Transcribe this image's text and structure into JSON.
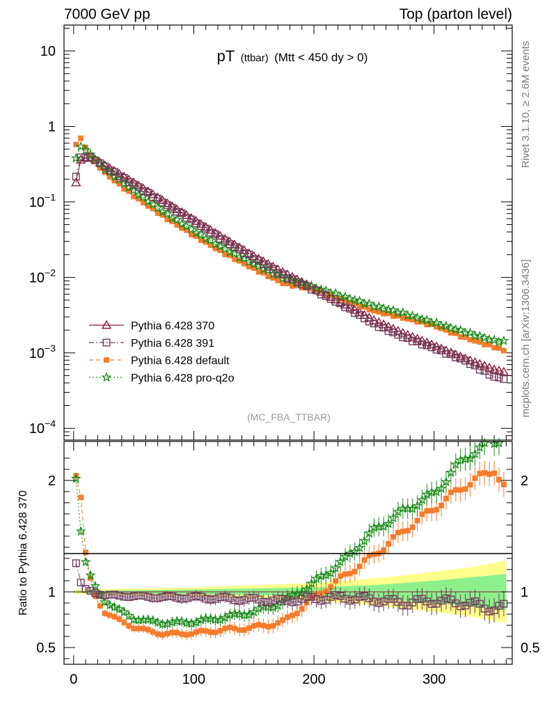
{
  "header": {
    "left": "7000 GeV pp",
    "right": "Top (parton level)"
  },
  "side_labels": {
    "rivet": "Rivet 3.1.10, ≥ 2.6M events",
    "mcplots": "mcplots.cern.ch [arXiv:1306.3436]"
  },
  "chart_data": {
    "type": "scatter",
    "title_main": "pT",
    "title_sub": "(ttbar)",
    "title_cond": "(Mtt < 450 dy > 0)",
    "watermark": "(MC_FBA_TTBAR)",
    "xlim": [
      -8,
      365
    ],
    "x_ticks": [
      0,
      100,
      200,
      300
    ],
    "top_panel": {
      "yscale": "log",
      "ylim": [
        7e-05,
        22
      ],
      "y_ticks": [
        {
          "value": 10,
          "base": "10",
          "exp": ""
        },
        {
          "value": 1,
          "base": "1",
          "exp": ""
        },
        {
          "value": 0.1,
          "base": "10",
          "exp": "−1"
        },
        {
          "value": 0.01,
          "base": "10",
          "exp": "−2"
        },
        {
          "value": 0.001,
          "base": "10",
          "exp": "−3"
        },
        {
          "value": 0.0001,
          "base": "10",
          "exp": "−4"
        }
      ]
    },
    "ratio_panel": {
      "ylabel": "Ratio to Pythia 6.428 370",
      "ylim": [
        0.35,
        2.35
      ],
      "y_ticks": [
        0.5,
        1,
        2
      ],
      "y_tick_labels": [
        "0.5",
        "1",
        "2"
      ],
      "band_anchors_x": [
        0,
        100,
        200,
        250,
        300,
        330,
        360
      ],
      "band_green_halfwidth": [
        0.01,
        0.02,
        0.04,
        0.06,
        0.1,
        0.13,
        0.16
      ],
      "band_yellow_halfwidth": [
        0.02,
        0.04,
        0.08,
        0.12,
        0.18,
        0.22,
        0.28
      ]
    },
    "series": [
      {
        "name": "Pythia 6.428 370",
        "color": "#8b1a3a",
        "marker": "triangle",
        "line": "solid",
        "anchors_x": [
          2,
          6,
          10,
          16,
          25,
          50,
          75,
          100,
          125,
          150,
          175,
          200,
          225,
          250,
          275,
          300,
          325,
          350,
          360
        ],
        "anchors_y": [
          0.18,
          0.36,
          0.38,
          0.38,
          0.31,
          0.18,
          0.102,
          0.058,
          0.033,
          0.019,
          0.0115,
          0.0072,
          0.0044,
          0.0027,
          0.0018,
          0.00125,
          0.00085,
          0.0006,
          0.00055
        ],
        "ratio_anchors_y": [
          1,
          1,
          1,
          1,
          1,
          1,
          1,
          1,
          1,
          1,
          1,
          1,
          1,
          1,
          1,
          1,
          1,
          1,
          1
        ]
      },
      {
        "name": "Pythia 6.428 391",
        "color": "#6e3a5a",
        "marker": "open-square",
        "line": "dash-dot",
        "anchors_x": [
          2,
          6,
          10,
          16,
          25,
          50,
          75,
          100,
          125,
          150,
          175,
          200,
          225,
          250,
          275,
          300,
          325,
          350,
          360
        ],
        "anchors_y": [
          0.22,
          0.38,
          0.4,
          0.38,
          0.3,
          0.17,
          0.097,
          0.055,
          0.031,
          0.018,
          0.0105,
          0.0068,
          0.0042,
          0.0024,
          0.0016,
          0.00115,
          0.0008,
          0.00048,
          0.00045
        ],
        "ratio_anchors_y": [
          1.26,
          1.08,
          1.02,
          1.0,
          0.97,
          0.96,
          0.95,
          0.95,
          0.94,
          0.93,
          0.92,
          0.94,
          0.95,
          0.93,
          0.9,
          0.92,
          0.9,
          0.85,
          0.86
        ]
      },
      {
        "name": "Pythia 6.428 default",
        "color": "#f57c2c",
        "marker": "filled-square",
        "line": "dashed",
        "anchors_x": [
          2,
          6,
          10,
          16,
          25,
          50,
          75,
          100,
          125,
          150,
          175,
          200,
          225,
          250,
          275,
          300,
          325,
          350,
          360
        ],
        "anchors_y": [
          0.58,
          0.7,
          0.52,
          0.38,
          0.25,
          0.12,
          0.064,
          0.036,
          0.021,
          0.013,
          0.0083,
          0.0069,
          0.005,
          0.0036,
          0.0029,
          0.0023,
          0.0016,
          0.0012,
          0.00105
        ],
        "ratio_anchors_y": [
          2.05,
          1.85,
          1.35,
          1.0,
          0.82,
          0.68,
          0.62,
          0.63,
          0.66,
          0.68,
          0.73,
          0.95,
          1.14,
          1.33,
          1.55,
          1.75,
          1.95,
          2.1,
          1.9
        ]
      },
      {
        "name": "Pythia 6.428 pro-q2o",
        "color": "#1a8a1a",
        "marker": "star",
        "line": "dotted",
        "anchors_x": [
          2,
          6,
          10,
          16,
          25,
          50,
          75,
          100,
          125,
          150,
          175,
          200,
          225,
          250,
          275,
          300,
          325,
          350,
          360
        ],
        "anchors_y": [
          0.37,
          0.55,
          0.48,
          0.4,
          0.28,
          0.14,
          0.073,
          0.041,
          0.024,
          0.015,
          0.0096,
          0.0074,
          0.0055,
          0.0042,
          0.0033,
          0.0025,
          0.0019,
          0.00145,
          0.0014
        ],
        "ratio_anchors_y": [
          2.02,
          1.55,
          1.27,
          1.08,
          0.92,
          0.76,
          0.72,
          0.73,
          0.77,
          0.82,
          0.91,
          1.08,
          1.28,
          1.55,
          1.73,
          1.88,
          2.2,
          2.35,
          2.4
        ]
      }
    ]
  }
}
